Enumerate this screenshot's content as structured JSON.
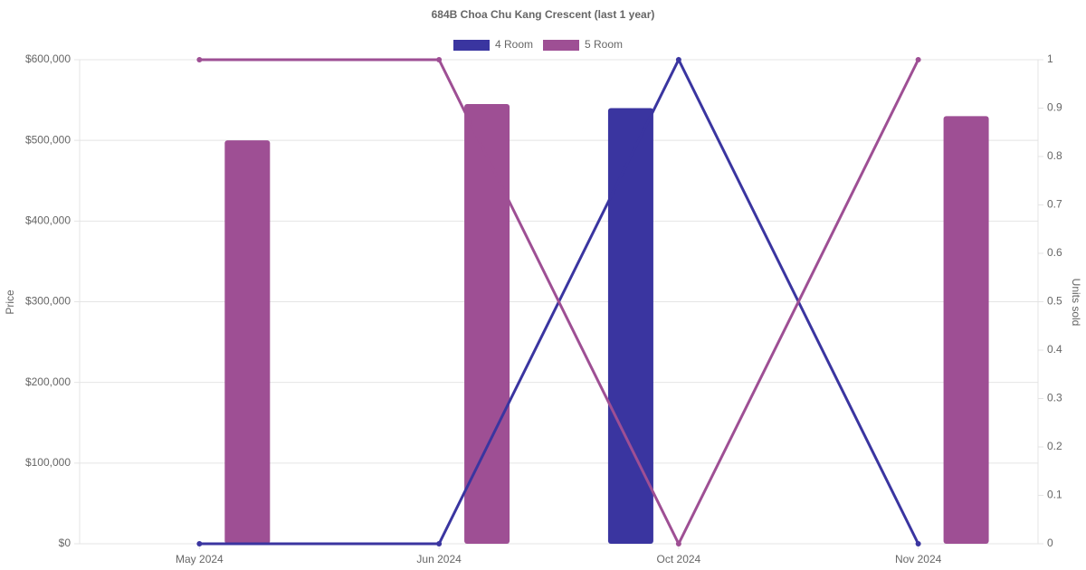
{
  "chart_data": {
    "type": "bar-line",
    "title": "684B Choa Chu Kang Crescent (last 1 year)",
    "y_label": "Price",
    "y2_label": "Units sold",
    "categories": [
      "May 2024",
      "Jun 2024",
      "Oct 2024",
      "Nov 2024"
    ],
    "series": [
      {
        "name": "4 Room",
        "color": "#3a35a0",
        "values": [
          null,
          null,
          540000,
          null
        ],
        "units_sold": [
          0,
          0,
          1,
          0
        ]
      },
      {
        "name": "5 Room",
        "color": "#9e4f94",
        "values": [
          500000,
          545000,
          null,
          530000
        ],
        "units_sold": [
          1,
          1,
          0,
          1
        ]
      }
    ],
    "ylim": [
      0,
      600000
    ],
    "yticks": [
      {
        "value": 0,
        "label": "$0"
      },
      {
        "value": 100000,
        "label": "$100,000"
      },
      {
        "value": 200000,
        "label": "$200,000"
      },
      {
        "value": 300000,
        "label": "$300,000"
      },
      {
        "value": 400000,
        "label": "$400,000"
      },
      {
        "value": 500000,
        "label": "$500,000"
      },
      {
        "value": 600000,
        "label": "$600,000"
      }
    ],
    "y2lim": [
      0,
      1
    ],
    "y2ticks": [
      0,
      0.1,
      0.2,
      0.3,
      0.4,
      0.5,
      0.6,
      0.7,
      0.8,
      0.9,
      1
    ],
    "grid": true,
    "legend": "top"
  }
}
